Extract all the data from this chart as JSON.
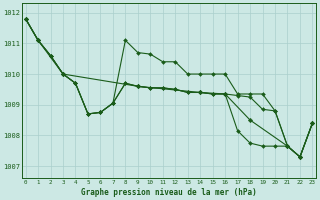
{
  "title": "Graphe pression niveau de la mer (hPa)",
  "yticks": [
    1007,
    1008,
    1009,
    1010,
    1011,
    1012
  ],
  "xticks": [
    0,
    1,
    2,
    3,
    4,
    5,
    6,
    7,
    8,
    9,
    10,
    11,
    12,
    13,
    14,
    15,
    16,
    17,
    18,
    19,
    20,
    21,
    22,
    23
  ],
  "ylim": [
    1006.6,
    1012.3
  ],
  "xlim": [
    -0.3,
    23.3
  ],
  "bg_color": "#cce8e4",
  "grid_color": "#aacfcc",
  "line_color": "#1a5c1a",
  "series_jagged_x": [
    0,
    1,
    2,
    3,
    4,
    5,
    6,
    7,
    8,
    9,
    10,
    11,
    12,
    13,
    14,
    15,
    16,
    17,
    18,
    19,
    20,
    21,
    22,
    23
  ],
  "series_jagged_y": [
    1011.8,
    1011.1,
    1010.6,
    1010.0,
    1009.7,
    1008.7,
    1008.75,
    1009.05,
    1011.1,
    1010.7,
    1010.65,
    1010.4,
    1010.4,
    1010.0,
    1010.0,
    1010.0,
    1010.0,
    1009.35,
    1009.35,
    1009.35,
    1008.8,
    1007.65,
    1007.3,
    1008.4
  ],
  "series_smooth1_x": [
    0,
    1,
    2,
    3,
    4,
    5,
    6,
    7,
    8,
    9,
    10,
    11,
    12,
    13,
    14,
    15,
    16,
    17,
    18,
    19,
    20,
    21,
    22,
    23
  ],
  "series_smooth1_y": [
    1011.8,
    1011.1,
    1010.6,
    1010.0,
    1009.7,
    1008.7,
    1008.75,
    1009.05,
    1009.7,
    1009.6,
    1009.55,
    1009.55,
    1009.5,
    1009.4,
    1009.4,
    1009.35,
    1009.35,
    1009.3,
    1009.25,
    1008.85,
    1008.8,
    1007.65,
    1007.3,
    1008.4
  ],
  "series_smooth2_x": [
    0,
    1,
    2,
    3,
    4,
    5,
    6,
    7,
    8,
    9,
    10,
    11,
    12,
    13,
    14,
    15,
    16,
    17,
    18,
    19,
    20,
    21,
    22,
    23
  ],
  "series_smooth2_y": [
    1011.8,
    1011.1,
    1010.6,
    1010.0,
    1009.7,
    1008.7,
    1008.75,
    1009.05,
    1009.7,
    1009.6,
    1009.55,
    1009.55,
    1009.5,
    1009.4,
    1009.4,
    1009.35,
    1009.35,
    1008.15,
    1007.75,
    1007.65,
    1007.65,
    1007.65,
    1007.3,
    1008.4
  ],
  "series_sparse_x": [
    0,
    1,
    3,
    9,
    14,
    16,
    18,
    21,
    22,
    23
  ],
  "series_sparse_y": [
    1011.8,
    1011.1,
    1010.0,
    1009.6,
    1009.4,
    1009.35,
    1008.5,
    1007.65,
    1007.3,
    1008.4
  ]
}
